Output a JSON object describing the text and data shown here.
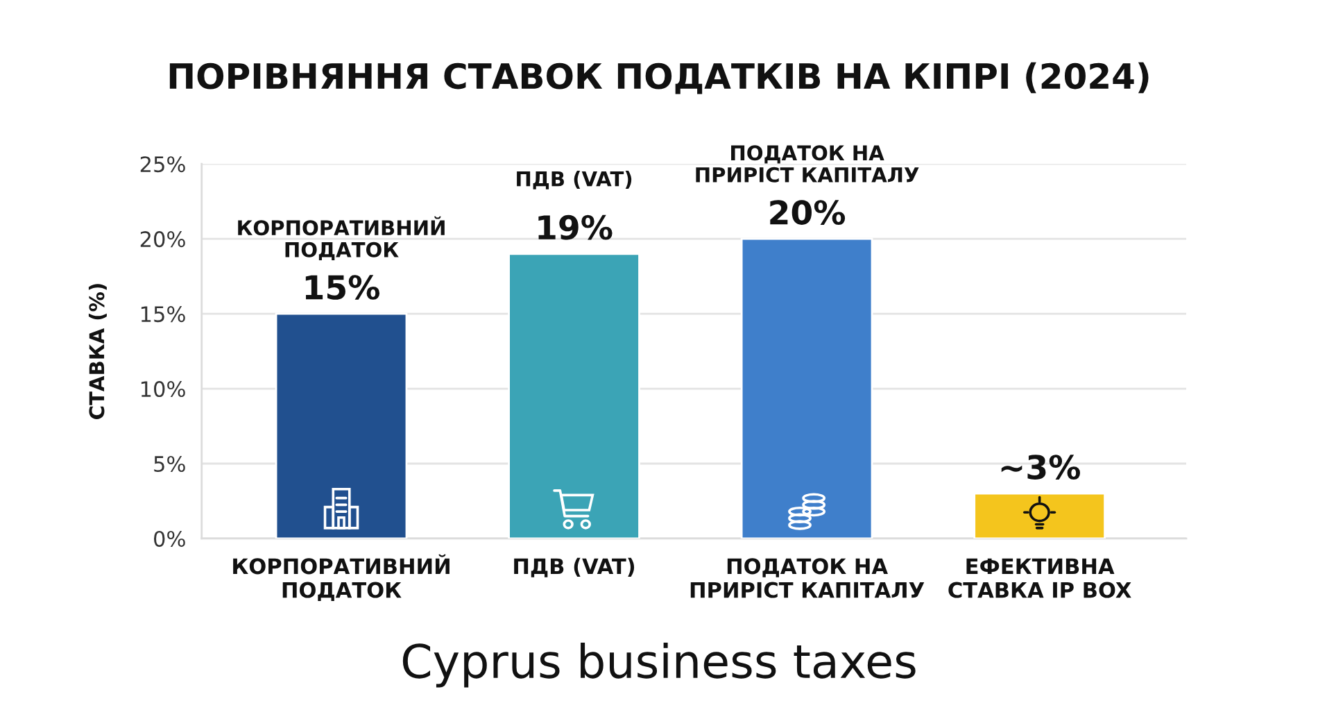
{
  "chart_data": {
    "type": "bar",
    "title": "ПОРІВНЯННЯ СТАВОК ПОДАТКІВ НА КІПРІ (2024)",
    "ylabel": "СТАВКА (%)",
    "categories": [
      "КОРПОРАТИВНИЙ\nПОДАТОК",
      "ПДВ (VAT)",
      "ПОДАТОК НА\nПРИРІСТ КАПІТАЛУ",
      "ЕФЕКТИВНА\nСТАВКА IP BOX"
    ],
    "values": [
      15,
      19,
      20,
      3
    ],
    "colors": [
      "#21508f",
      "#3ba4b6",
      "#3f7fcb",
      "#f4c51d"
    ],
    "value_labels": [
      "15%",
      "19%",
      "20%",
      "~3%"
    ],
    "ylim": [
      0,
      25
    ],
    "yticks": [
      {
        "value": 0,
        "label": "0%"
      },
      {
        "value": 5,
        "label": "5%"
      },
      {
        "value": 10,
        "label": "10%"
      },
      {
        "value": 15,
        "label": "15%"
      },
      {
        "value": 20,
        "label": "20%"
      },
      {
        "value": 25,
        "label": "25%"
      }
    ],
    "grid": "y",
    "annotations": [
      "КОРПОРАТИВНИЙ\nПОДАТОК",
      "ПДВ (VAT)",
      "ПОДАТОК НА\nПРИРІСТ КАПІТАЛУ",
      "Cyprus business taxes"
    ]
  }
}
